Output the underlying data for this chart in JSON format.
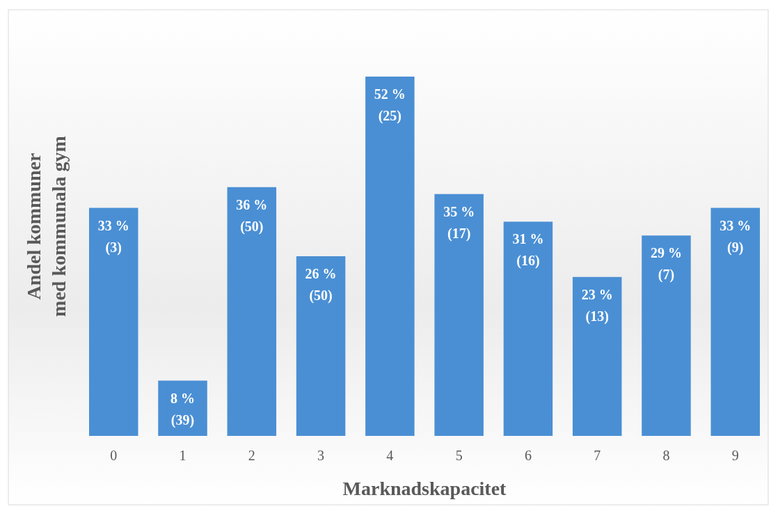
{
  "chart_data": {
    "type": "bar",
    "xlabel": "Marknadskapacitet",
    "ylabel": "Andel kommuner\nmed kommunala gym",
    "categories": [
      "0",
      "1",
      "2",
      "3",
      "4",
      "5",
      "6",
      "7",
      "8",
      "9"
    ],
    "values": [
      33,
      8,
      36,
      26,
      52,
      35,
      31,
      23,
      29,
      33
    ],
    "value_labels": [
      "33 %\n(3)",
      "8 %\n(39)",
      "36 %\n(50)",
      "26 %\n(50)",
      "52 %\n(25)",
      "35 %\n(17)",
      "31 %\n(16)",
      "23 %\n(13)",
      "29 %\n(7)",
      "33 %\n(9)"
    ],
    "color": "#4a8fd4"
  }
}
